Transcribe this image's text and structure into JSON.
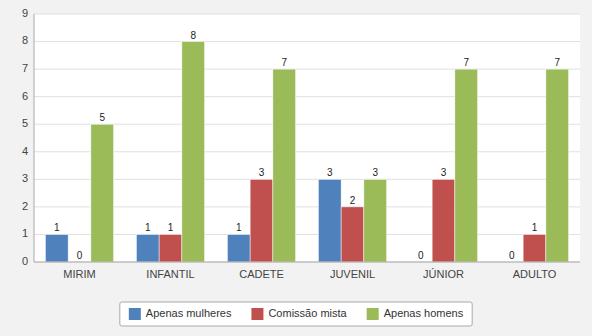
{
  "chart_data": {
    "type": "bar",
    "categories": [
      "MIRIM",
      "INFANTIL",
      "CADETE",
      "JUVENIL",
      "JÚNIOR",
      "ADULTO"
    ],
    "series": [
      {
        "name": "Apenas mulheres",
        "color": "#4F81BD",
        "values": [
          1,
          1,
          1,
          3,
          0,
          0
        ]
      },
      {
        "name": "Comissão mista",
        "color": "#C0504D",
        "values": [
          0,
          1,
          3,
          2,
          3,
          1
        ]
      },
      {
        "name": "Apenas homens",
        "color": "#9BBB59",
        "values": [
          5,
          8,
          7,
          3,
          7,
          7
        ]
      }
    ],
    "ylim": [
      0,
      9
    ],
    "yticks": [
      0,
      1,
      2,
      3,
      4,
      5,
      6,
      7,
      8,
      9
    ],
    "grid": true,
    "legend": "bottom",
    "data_labels": true
  }
}
